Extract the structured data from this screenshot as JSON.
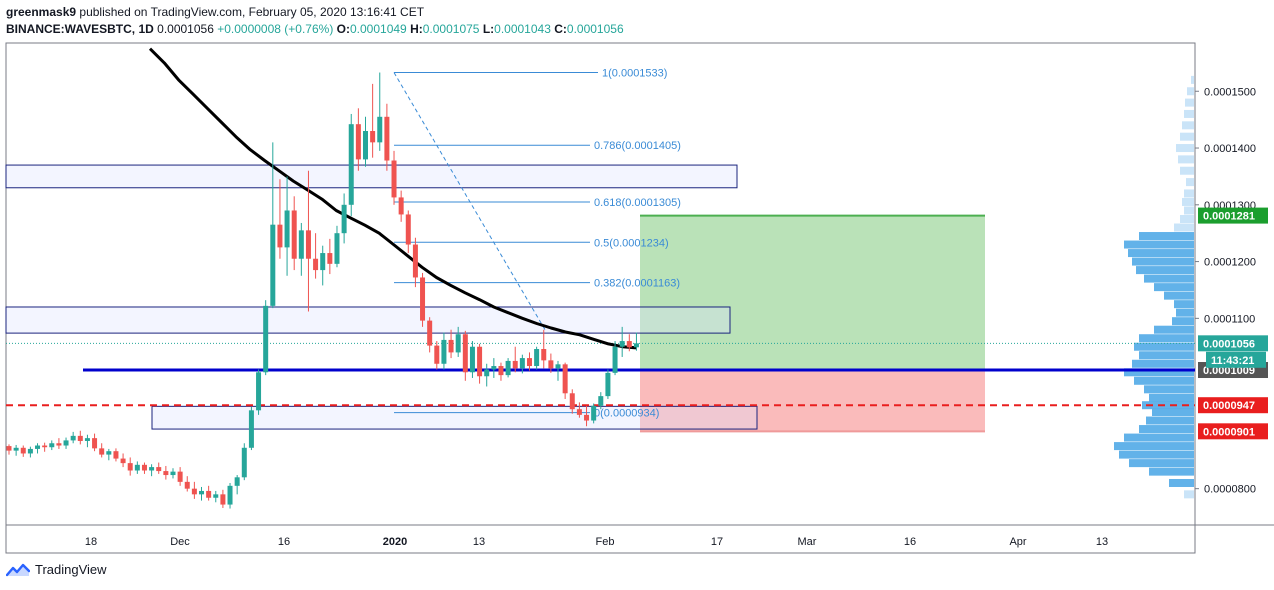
{
  "header": {
    "author": "greenmask9",
    "published_text": "published on TradingView.com, February 05, 2020 13:16:41 CET",
    "symbol": "BINANCE:WAVESBTC, 1D",
    "last": "0.0001056",
    "change": "+0.0000008 (+0.76%)",
    "o_label": "O:",
    "o": "0.0001049",
    "h_label": "H:",
    "h": "0.0001075",
    "l_label": "L:",
    "l": "0.0001043",
    "c_label": "C:",
    "c": "0.0001056"
  },
  "footer": {
    "brand": "TradingView",
    "icon": "tradingview-logo-icon"
  },
  "colors": {
    "up": "#26a69a",
    "down": "#ef5350",
    "ma": "#000000",
    "support": "#0000cc",
    "stop": "#e91e1e",
    "fib": "#3a8bd6",
    "target_zone": "#b2dfb0",
    "stop_zone": "#f9b4b4",
    "volume_profile": "#5aaee8"
  },
  "chart_data": {
    "type": "candlestick",
    "interval": "1D",
    "ylim": [
      7.36e-05,
      0.0001585
    ],
    "y_ticks": [
      "0.0000800",
      "0.0001100",
      "0.0001200",
      "0.0001300",
      "0.0001400",
      "0.0001500"
    ],
    "x_ticks": [
      "18",
      "Dec",
      "16",
      "2020",
      "13",
      "Feb",
      "17",
      "Mar",
      "16",
      "Apr",
      "13"
    ],
    "price_labels": [
      {
        "text": "0.0001281",
        "kind": "target"
      },
      {
        "text": "0.0001056",
        "kind": "last"
      },
      {
        "text": "11:43:21",
        "kind": "countdown"
      },
      {
        "text": "0.0001009",
        "kind": "support"
      },
      {
        "text": "0.0000947",
        "kind": "stop-line"
      },
      {
        "text": "0.0000901",
        "kind": "stop"
      }
    ],
    "fib_levels": [
      {
        "ratio": "1",
        "text": "1(0.0001533)",
        "price": 0.0001533
      },
      {
        "ratio": "0.786",
        "text": "0.786(0.0001405)",
        "price": 0.0001405
      },
      {
        "ratio": "0.618",
        "text": "0.618(0.0001305)",
        "price": 0.0001305
      },
      {
        "ratio": "0.5",
        "text": "0.5(0.0001234)",
        "price": 0.0001234
      },
      {
        "ratio": "0.382",
        "text": "0.382(0.0001163)",
        "price": 0.0001163
      },
      {
        "ratio": "0",
        "text": "0(0.0000934)",
        "price": 9.34e-05
      }
    ],
    "support_level": 0.0001009,
    "stop_level": 9.47e-05,
    "position": {
      "entry": 0.0001009,
      "target": 0.0001281,
      "stop": 9.01e-05
    },
    "zones": [
      {
        "name": "resistance-zone",
        "top": 0.000137,
        "bottom": 0.000133
      },
      {
        "name": "mid-zone",
        "top": 0.000112,
        "bottom": 0.0001074
      },
      {
        "name": "demand-zone",
        "top": 9.45e-05,
        "bottom": 9.05e-05
      }
    ],
    "candles": [
      [
        8.75e-05,
        8.78e-05,
        8.6e-05,
        8.67e-05
      ],
      [
        8.67e-05,
        8.77e-05,
        8.58e-05,
        8.72e-05
      ],
      [
        8.72e-05,
        8.76e-05,
        8.56e-05,
        8.62e-05
      ],
      [
        8.62e-05,
        8.74e-05,
        8.55e-05,
        8.7e-05
      ],
      [
        8.7e-05,
        8.8e-05,
        8.62e-05,
        8.76e-05
      ],
      [
        8.76e-05,
        8.81e-05,
        8.65e-05,
        8.73e-05
      ],
      [
        8.73e-05,
        8.85e-05,
        8.68e-05,
        8.8e-05
      ],
      [
        8.8e-05,
        8.89e-05,
        8.7e-05,
        8.76e-05
      ],
      [
        8.76e-05,
        8.9e-05,
        8.7e-05,
        8.85e-05
      ],
      [
        8.85e-05,
        9e-05,
        8.8e-05,
        8.93e-05
      ],
      [
        8.93e-05,
        9.02e-05,
        8.78e-05,
        8.84e-05
      ],
      [
        8.84e-05,
        8.95e-05,
        8.73e-05,
        8.89e-05
      ],
      [
        8.89e-05,
        8.97e-05,
        8.66e-05,
        8.71e-05
      ],
      [
        8.71e-05,
        8.8e-05,
        8.55e-05,
        8.6e-05
      ],
      [
        8.6e-05,
        8.7e-05,
        8.5e-05,
        8.66e-05
      ],
      [
        8.66e-05,
        8.71e-05,
        8.48e-05,
        8.53e-05
      ],
      [
        8.53e-05,
        8.62e-05,
        8.38e-05,
        8.45e-05
      ],
      [
        8.45e-05,
        8.55e-05,
        8.23e-05,
        8.32e-05
      ],
      [
        8.32e-05,
        8.48e-05,
        8.26e-05,
        8.42e-05
      ],
      [
        8.42e-05,
        8.46e-05,
        8.26e-05,
        8.32e-05
      ],
      [
        8.32e-05,
        8.43e-05,
        8.22e-05,
        8.38e-05
      ],
      [
        8.38e-05,
        8.46e-05,
        8.26e-05,
        8.31e-05
      ],
      [
        8.31e-05,
        8.4e-05,
        8.16e-05,
        8.24e-05
      ],
      [
        8.24e-05,
        8.36e-05,
        8.18e-05,
        8.3e-05
      ],
      [
        8.3e-05,
        8.38e-05,
        8.05e-05,
        8.12e-05
      ],
      [
        8.12e-05,
        8.22e-05,
        7.95e-05,
        8e-05
      ],
      [
        8e-05,
        8.12e-05,
        7.82e-05,
        7.9e-05
      ],
      [
        7.9e-05,
        8.03e-05,
        7.79e-05,
        7.96e-05
      ],
      [
        7.96e-05,
        8.05e-05,
        7.79e-05,
        7.84e-05
      ],
      [
        7.84e-05,
        7.96e-05,
        7.76e-05,
        7.9e-05
      ],
      [
        7.9e-05,
        7.98e-05,
        7.66e-05,
        7.72e-05
      ],
      [
        7.72e-05,
        8.1e-05,
        7.65e-05,
        8.05e-05
      ],
      [
        8.05e-05,
        8.24e-05,
        7.9e-05,
        8.2e-05
      ],
      [
        8.2e-05,
        8.8e-05,
        8.15e-05,
        8.72e-05
      ],
      [
        8.72e-05,
        9.44e-05,
        8.68e-05,
        9.38e-05
      ],
      [
        9.38e-05,
        0.000101,
        9.3e-05,
        0.0001005
      ],
      [
        0.0001005,
        0.0001132,
        0.0001,
        0.0001122
      ],
      [
        0.0001122,
        0.000141,
        0.0001118,
        0.0001265
      ],
      [
        0.0001265,
        0.0001345,
        0.0001205,
        0.0001225
      ],
      [
        0.0001225,
        0.000135,
        0.0001175,
        0.000129
      ],
      [
        0.000129,
        0.0001315,
        0.0001185,
        0.0001205
      ],
      [
        0.0001205,
        0.0001268,
        0.0001175,
        0.0001255
      ],
      [
        0.0001255,
        0.000136,
        0.0001112,
        0.0001205
      ],
      [
        0.0001205,
        0.000125,
        0.000117,
        0.0001185
      ],
      [
        0.0001185,
        0.0001228,
        0.0001158,
        0.0001215
      ],
      [
        0.0001215,
        0.000124,
        0.0001178,
        0.0001196
      ],
      [
        0.0001196,
        0.0001263,
        0.000119,
        0.000125
      ],
      [
        0.000125,
        0.000132,
        0.0001232,
        0.00013
      ],
      [
        0.00013,
        0.000146,
        0.000128,
        0.0001442
      ],
      [
        0.0001442,
        0.000147,
        0.000136,
        0.000138
      ],
      [
        0.000138,
        0.0001455,
        0.0001367,
        0.000143
      ],
      [
        0.000143,
        0.0001513,
        0.0001383,
        0.000141
      ],
      [
        0.000141,
        0.0001533,
        0.0001395,
        0.0001455
      ],
      [
        0.0001455,
        0.0001478,
        0.000136,
        0.0001378
      ],
      [
        0.0001378,
        0.0001395,
        0.00013,
        0.0001313
      ],
      [
        0.0001313,
        0.0001325,
        0.000127,
        0.0001283
      ],
      [
        0.0001283,
        0.000129,
        0.0001215,
        0.000123
      ],
      [
        0.000123,
        0.0001242,
        0.0001155,
        0.0001172
      ],
      [
        0.0001172,
        0.000118,
        0.0001085,
        0.0001096
      ],
      [
        0.0001096,
        0.0001102,
        0.000104,
        0.0001052
      ],
      [
        0.0001052,
        0.000106,
        0.000101,
        0.000102
      ],
      [
        0.000102,
        0.0001075,
        0.000101,
        0.0001062
      ],
      [
        0.0001062,
        0.000108,
        0.000103,
        0.000104
      ],
      [
        0.000104,
        0.0001085,
        0.0001032,
        0.0001072
      ],
      [
        0.0001072,
        0.0001078,
        9.9e-05,
        0.0001005
      ],
      [
        0.0001005,
        0.000106,
        9.95e-05,
        0.000105
      ],
      [
        0.000105,
        0.0001055,
        9.85e-05,
        9.98e-05
      ],
      [
        9.98e-05,
        0.000102,
        9.8e-05,
        0.000101
      ],
      [
        0.000101,
        0.000103,
        9.95e-05,
        0.0001016
      ],
      [
        0.0001016,
        0.0001022,
        9.9e-05,
        0.0001
      ],
      [
        0.0001,
        0.000103,
        9.96e-05,
        0.0001025
      ],
      [
        0.0001025,
        0.000105,
        0.0001005,
        0.0001012
      ],
      [
        0.0001012,
        0.0001036,
        0.0001003,
        0.000103
      ],
      [
        0.000103,
        0.000104,
        0.0001008,
        0.0001016
      ],
      [
        0.0001016,
        0.000105,
        0.000101,
        0.0001046
      ],
      [
        0.0001046,
        0.000108,
        0.0001012,
        0.0001026
      ],
      [
        0.0001026,
        0.0001038,
        0.0001004,
        0.0001012
      ],
      [
        0.0001012,
        0.0001025,
        9.9e-05,
        0.0001019
      ],
      [
        0.0001019,
        0.0001022,
        9.58e-05,
        9.68e-05
      ],
      [
        9.68e-05,
        9.75e-05,
        9.32e-05,
        9.4e-05
      ],
      [
        9.4e-05,
        9.52e-05,
        9.25e-05,
        9.3e-05
      ],
      [
        9.3e-05,
        9.46e-05,
        9.1e-05,
        9.2e-05
      ],
      [
        9.2e-05,
        9.5e-05,
        9.15e-05,
        9.46e-05
      ],
      [
        9.46e-05,
        9.7e-05,
        9.4e-05,
        9.63e-05
      ],
      [
        9.63e-05,
        0.000101,
        9.58e-05,
        0.0001004
      ],
      [
        0.0001004,
        0.000106,
        0.0001,
        0.000105
      ],
      [
        0.000105,
        0.0001085,
        0.0001032,
        0.000106
      ],
      [
        0.000106,
        0.0001072,
        0.0001042,
        0.0001049
      ],
      [
        0.0001049,
        0.0001075,
        0.0001043,
        0.0001056
      ]
    ],
    "moving_average": [
      [
        0.0001575,
        0.000155,
        0.000152,
        0.0001495,
        0.000147,
        0.0001445,
        0.000142,
        0.0001397,
        0.0001378,
        0.000136,
        0.0001342,
        0.0001326,
        0.000131,
        0.000129,
        0.0001277,
        0.0001264,
        0.000125,
        0.000123,
        0.000121,
        0.000119,
        0.0001172,
        0.0001158,
        0.0001145,
        0.0001133,
        0.000112,
        0.000111,
        0.00011,
        0.0001091,
        0.0001083,
        0.0001076,
        0.0001071,
        0.0001063,
        0.0001055,
        0.000105,
        0.0001048
      ]
    ],
    "volume_profile": [
      [
        7.9e-05,
        0.1
      ],
      [
        8.1e-05,
        0.25
      ],
      [
        8.3e-05,
        0.45
      ],
      [
        8.45e-05,
        0.65
      ],
      [
        8.6e-05,
        0.75
      ],
      [
        8.75e-05,
        0.8
      ],
      [
        8.9e-05,
        0.7
      ],
      [
        9.05e-05,
        0.55
      ],
      [
        9.2e-05,
        0.48
      ],
      [
        9.35e-05,
        0.42
      ],
      [
        9.47e-05,
        0.52
      ],
      [
        9.6e-05,
        0.45
      ],
      [
        9.75e-05,
        0.5
      ],
      [
        9.9e-05,
        0.6
      ],
      [
        0.0001005,
        0.7
      ],
      [
        0.000102,
        0.62
      ],
      [
        0.0001035,
        0.55
      ],
      [
        0.000105,
        0.6
      ],
      [
        0.0001065,
        0.55
      ],
      [
        0.000108,
        0.4
      ],
      [
        0.0001095,
        0.22
      ],
      [
        0.000111,
        0.18
      ],
      [
        0.0001125,
        0.2
      ],
      [
        0.000114,
        0.3
      ],
      [
        0.0001155,
        0.4
      ],
      [
        0.000117,
        0.5
      ],
      [
        0.0001185,
        0.58
      ],
      [
        0.00012,
        0.62
      ],
      [
        0.0001215,
        0.66
      ],
      [
        0.000123,
        0.7
      ],
      [
        0.0001245,
        0.55
      ],
      [
        0.000126,
        0.2
      ],
      [
        0.0001275,
        0.14
      ],
      [
        0.000129,
        0.1
      ],
      [
        0.0001305,
        0.12
      ],
      [
        0.000132,
        0.1
      ],
      [
        0.000134,
        0.08
      ],
      [
        0.000136,
        0.14
      ],
      [
        0.000138,
        0.16
      ],
      [
        0.00014,
        0.18
      ],
      [
        0.000142,
        0.14
      ],
      [
        0.000144,
        0.12
      ],
      [
        0.000146,
        0.1
      ],
      [
        0.000148,
        0.09
      ],
      [
        0.00015,
        0.07
      ],
      [
        0.000152,
        0.03
      ]
    ]
  }
}
